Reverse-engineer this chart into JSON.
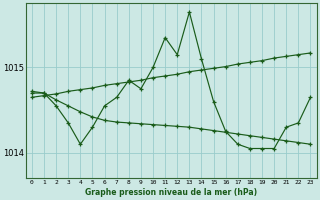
{
  "title": "Graphe pression niveau de la mer (hPa)",
  "bg_color": "#cce8e4",
  "grid_color": "#99cccc",
  "line_color": "#1a5c1a",
  "x_ticks": [
    0,
    1,
    2,
    3,
    4,
    5,
    6,
    7,
    8,
    9,
    10,
    11,
    12,
    13,
    14,
    15,
    16,
    17,
    18,
    19,
    20,
    21,
    22,
    23
  ],
  "ylim": [
    1013.7,
    1015.75
  ],
  "yticks": [
    1014,
    1015
  ],
  "series_main": [
    1014.7,
    1014.7,
    1014.55,
    1014.35,
    1014.1,
    1014.3,
    1014.55,
    1014.65,
    1014.85,
    1014.75,
    1015.0,
    1015.35,
    1015.15,
    1015.65,
    1015.1,
    1014.6,
    1014.25,
    1014.1,
    1014.05,
    1014.05,
    1014.05,
    1014.3,
    1014.35,
    1014.65
  ],
  "series_trend_up": [
    1014.65,
    1014.67,
    1014.69,
    1014.72,
    1014.74,
    1014.76,
    1014.79,
    1014.81,
    1014.83,
    1014.85,
    1014.88,
    1014.9,
    1014.92,
    1014.95,
    1014.97,
    1014.99,
    1015.01,
    1015.04,
    1015.06,
    1015.08,
    1015.11,
    1015.13,
    1015.15,
    1015.17
  ],
  "series_trend_down": [
    1014.72,
    1014.7,
    1014.62,
    1014.55,
    1014.48,
    1014.42,
    1014.38,
    1014.36,
    1014.35,
    1014.34,
    1014.33,
    1014.32,
    1014.31,
    1014.3,
    1014.28,
    1014.26,
    1014.24,
    1014.22,
    1014.2,
    1014.18,
    1014.16,
    1014.14,
    1014.12,
    1014.1
  ]
}
